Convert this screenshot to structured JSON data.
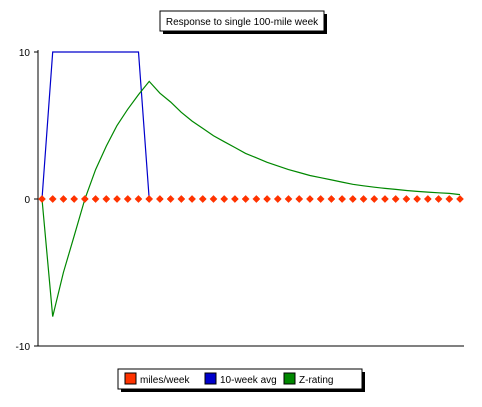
{
  "chart_data": {
    "type": "line",
    "title": "Response to single 100-mile week",
    "xlabel": "",
    "ylabel": "",
    "ylim": [
      -10,
      10
    ],
    "xlim": [
      0,
      39
    ],
    "y_ticks": [
      10,
      0,
      -10
    ],
    "grid": false,
    "legend_position": "bottom",
    "series": [
      {
        "name": "miles/week",
        "color": "#ff3300",
        "marker": "diamond",
        "x": [
          0,
          1,
          2,
          3,
          4,
          5,
          6,
          7,
          8,
          9,
          10,
          11,
          12,
          13,
          14,
          15,
          16,
          17,
          18,
          19,
          20,
          21,
          22,
          23,
          24,
          25,
          26,
          27,
          28,
          29,
          30,
          31,
          32,
          33,
          34,
          35,
          36,
          37,
          38,
          39
        ],
        "values": [
          0,
          0,
          0,
          0,
          0,
          0,
          0,
          0,
          0,
          0,
          0,
          0,
          0,
          0,
          0,
          0,
          0,
          0,
          0,
          0,
          0,
          0,
          0,
          0,
          0,
          0,
          0,
          0,
          0,
          0,
          0,
          0,
          0,
          0,
          0,
          0,
          0,
          0,
          0,
          0
        ]
      },
      {
        "name": "10-week avg",
        "color": "#0000cc",
        "x": [
          0,
          1,
          2,
          3,
          4,
          5,
          6,
          7,
          8,
          9,
          10
        ],
        "values": [
          0,
          10,
          10,
          10,
          10,
          10,
          10,
          10,
          10,
          10,
          0
        ]
      },
      {
        "name": "Z-rating",
        "color": "#008800",
        "x": [
          0,
          1,
          2,
          3,
          4,
          5,
          6,
          7,
          8,
          9,
          10,
          11,
          12,
          13,
          14,
          15,
          16,
          17,
          18,
          19,
          20,
          21,
          22,
          23,
          24,
          25,
          26,
          27,
          28,
          29,
          30,
          31,
          32,
          33,
          34,
          35,
          36,
          37,
          38,
          39
        ],
        "values": [
          0,
          -8.0,
          -5.0,
          -2.5,
          0,
          2.0,
          3.6,
          5.0,
          6.1,
          7.1,
          8.0,
          7.2,
          6.6,
          5.9,
          5.3,
          4.8,
          4.3,
          3.9,
          3.5,
          3.1,
          2.8,
          2.5,
          2.25,
          2.0,
          1.8,
          1.6,
          1.45,
          1.3,
          1.15,
          1.0,
          0.9,
          0.8,
          0.72,
          0.65,
          0.58,
          0.52,
          0.47,
          0.42,
          0.38,
          0.3
        ]
      }
    ]
  }
}
